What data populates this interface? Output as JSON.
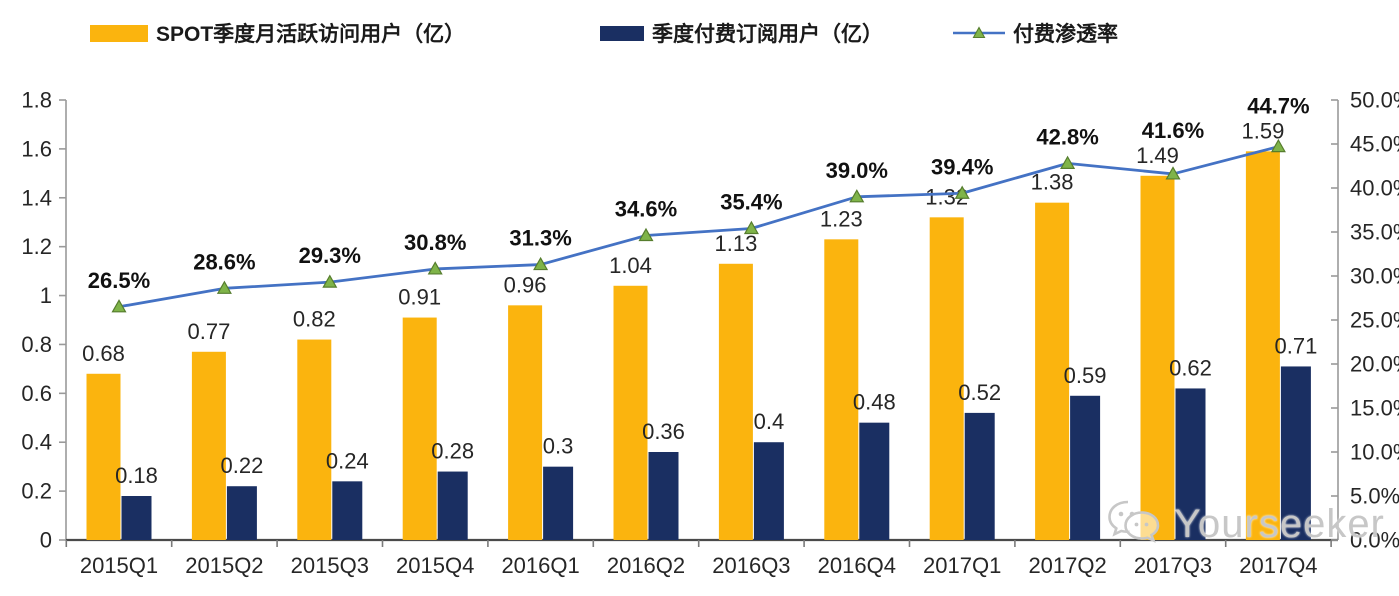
{
  "legend": [
    {
      "label": "SPOT季度月活跃访问用户（亿）",
      "swatch": "bar",
      "color": "#FBB40E"
    },
    {
      "label": "季度付费订阅用户（亿）",
      "swatch": "bar",
      "color": "#1A2F62"
    },
    {
      "label": "付费渗透率",
      "swatch": "line",
      "color": "#4472C4",
      "marker_color": "#7FB449",
      "marker_edge": "#567D2E"
    }
  ],
  "watermark": {
    "text": "Yourseeker",
    "icon": "wechat-icon",
    "color": "#c7c7c7"
  },
  "chart_data": {
    "type": "combo",
    "categories": [
      "2015Q1",
      "2015Q2",
      "2015Q3",
      "2015Q4",
      "2016Q1",
      "2016Q2",
      "2016Q3",
      "2016Q4",
      "2017Q1",
      "2017Q2",
      "2017Q3",
      "2017Q4"
    ],
    "series": [
      {
        "name": "SPOT季度月活跃访问用户（亿）",
        "type": "bar",
        "axis": "left",
        "color": "#FBB40E",
        "values": [
          0.68,
          0.77,
          0.82,
          0.91,
          0.96,
          1.04,
          1.13,
          1.23,
          1.32,
          1.38,
          1.49,
          1.59
        ],
        "labels": [
          "0.68",
          "0.77",
          "0.82",
          "0.91",
          "0.96",
          "1.04",
          "1.13",
          "1.23",
          "1.32",
          "1.38",
          "1.49",
          "1.59"
        ]
      },
      {
        "name": "季度付费订阅用户（亿）",
        "type": "bar",
        "axis": "left",
        "color": "#1A2F62",
        "values": [
          0.18,
          0.22,
          0.24,
          0.28,
          0.3,
          0.36,
          0.4,
          0.48,
          0.52,
          0.59,
          0.62,
          0.71
        ],
        "labels": [
          "0.18",
          "0.22",
          "0.24",
          "0.28",
          "0.3",
          "0.36",
          "0.4",
          "0.48",
          "0.52",
          "0.59",
          "0.62",
          "0.71"
        ]
      },
      {
        "name": "付费渗透率",
        "type": "line",
        "axis": "right",
        "color": "#4472C4",
        "marker": "triangle",
        "marker_color": "#7FB449",
        "marker_edge": "#567D2E",
        "values": [
          26.5,
          28.6,
          29.3,
          30.8,
          31.3,
          34.6,
          35.4,
          39.0,
          39.4,
          42.8,
          41.6,
          44.7
        ],
        "labels": [
          "26.5%",
          "28.6%",
          "29.3%",
          "30.8%",
          "31.3%",
          "34.6%",
          "35.4%",
          "39.0%",
          "39.4%",
          "42.8%",
          "41.6%",
          "44.7%"
        ]
      }
    ],
    "left_axis": {
      "min": 0,
      "max": 1.8,
      "step": 0.2,
      "ticks": [
        "0",
        "0.2",
        "0.4",
        "0.6",
        "0.8",
        "1",
        "1.2",
        "1.4",
        "1.6",
        "1.8"
      ]
    },
    "right_axis": {
      "min": 0,
      "max": 50,
      "step": 5,
      "ticks": [
        "0.0%",
        "5.0%",
        "10.0%",
        "15.0%",
        "20.0%",
        "25.0%",
        "30.0%",
        "35.0%",
        "40.0%",
        "45.0%",
        "50.0%"
      ]
    },
    "grid": false,
    "legend_position": "top"
  }
}
